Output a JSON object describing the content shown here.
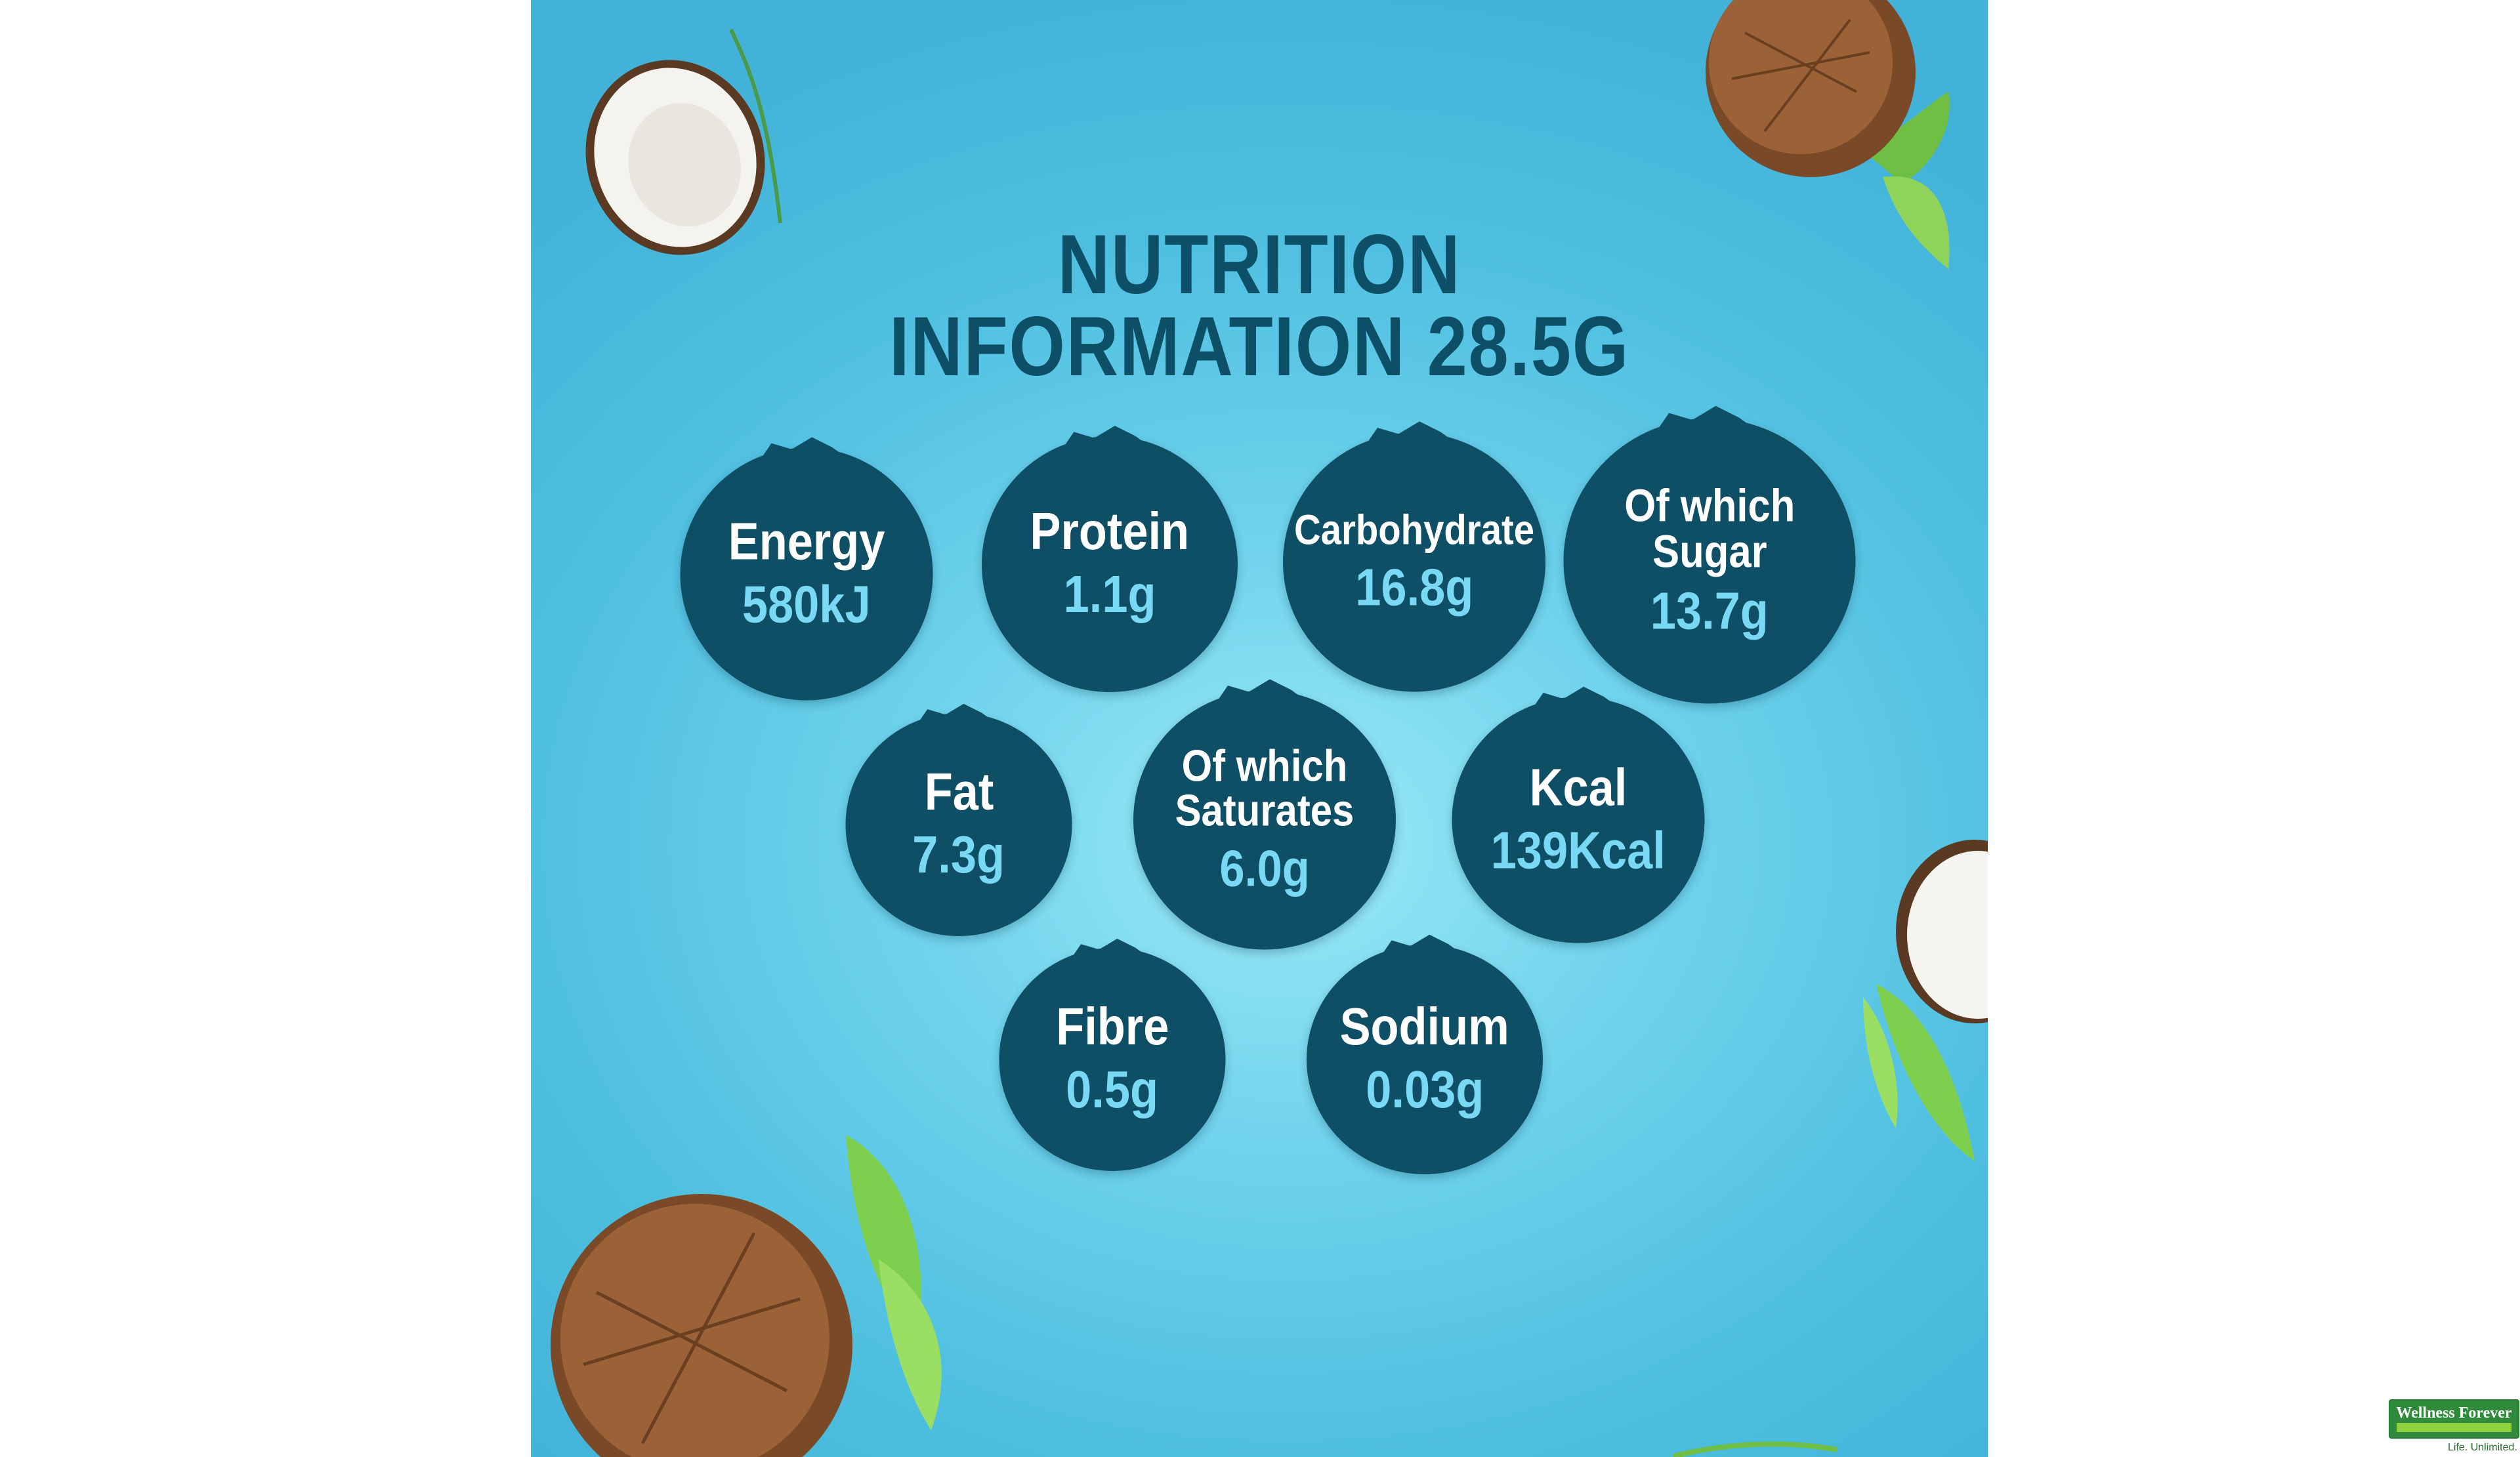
{
  "title": {
    "line1": "NUTRITION",
    "line2": "INFORMATION  28.5G"
  },
  "nutrients": [
    {
      "label": "Energy",
      "value": "580kJ"
    },
    {
      "label": "Protein",
      "value": "1.1g"
    },
    {
      "label": "Carbohydrate",
      "value": "16.8g"
    },
    {
      "label": "Of which\nSugar",
      "value": "13.7g"
    },
    {
      "label": "Fat",
      "value": "7.3g"
    },
    {
      "label": "Of which\nSaturates",
      "value": "6.0g"
    },
    {
      "label": "Kcal",
      "value": "139Kcal"
    },
    {
      "label": "Fibre",
      "value": "0.5g"
    },
    {
      "label": "Sodium",
      "value": "0.03g"
    }
  ],
  "watermark": {
    "brand": "Wellness Forever",
    "tagline": "Life. Unlimited."
  },
  "colors": {
    "circle": "#0f4f66",
    "title": "#0c4f66",
    "value": "#79d8f3",
    "background": "#5cc8e6"
  }
}
